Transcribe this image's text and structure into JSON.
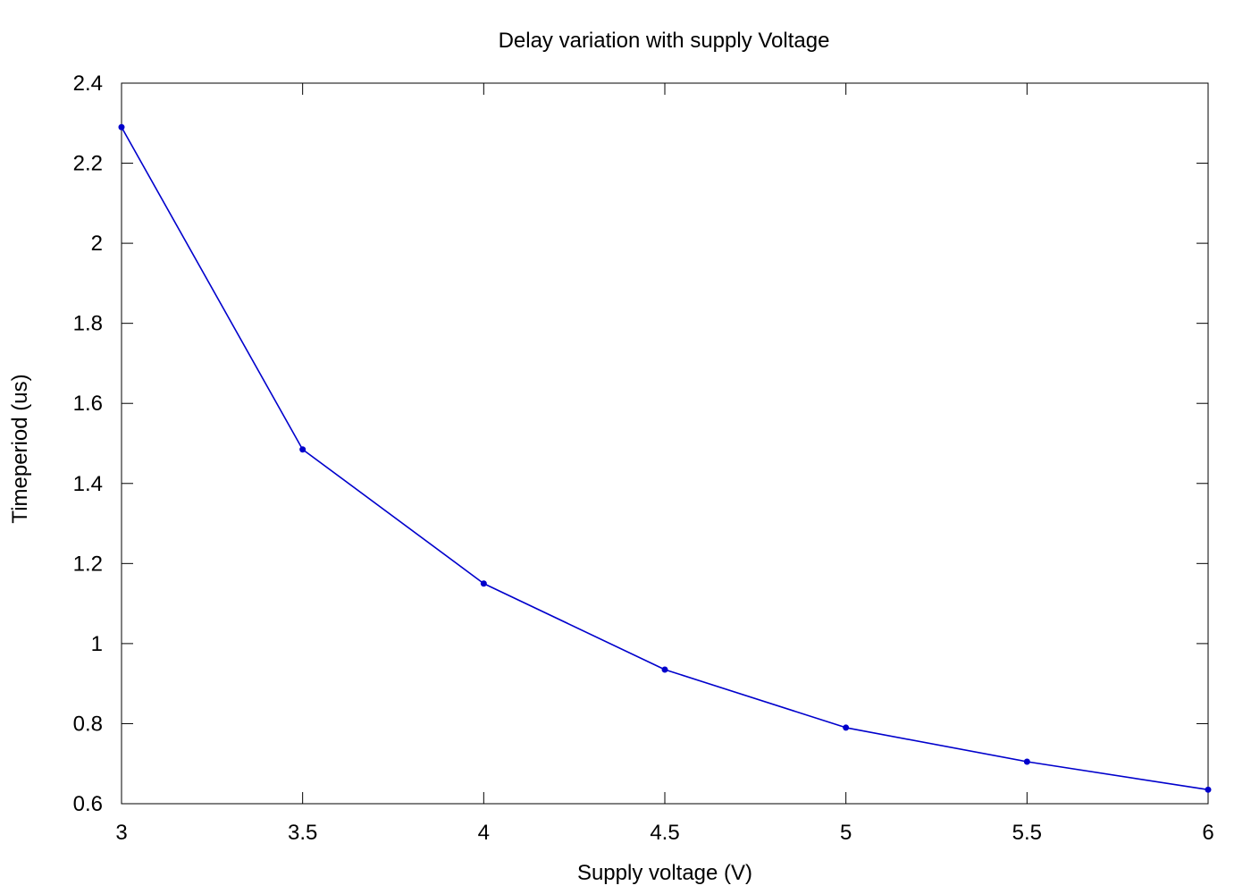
{
  "chart_data": {
    "type": "line",
    "title": "Delay variation with supply Voltage",
    "xlabel": "Supply voltage (V)",
    "ylabel": "Timeperiod (us)",
    "xlim": [
      3,
      6
    ],
    "ylim": [
      0.6,
      2.4
    ],
    "x_ticks": [
      "3",
      "3.5",
      "4",
      "4.5",
      "5",
      "5.5",
      "6"
    ],
    "y_ticks": [
      "0.6",
      "0.8",
      "1",
      "1.2",
      "1.4",
      "1.6",
      "1.8",
      "2",
      "2.2",
      "2.4"
    ],
    "grid": false,
    "legend": false,
    "series": [
      {
        "color": "#0000cc",
        "marker": "circle",
        "x": [
          3,
          3.5,
          4,
          4.5,
          5,
          5.5,
          6
        ],
        "y": [
          2.29,
          1.485,
          1.15,
          0.935,
          0.79,
          0.705,
          0.635
        ]
      }
    ]
  }
}
